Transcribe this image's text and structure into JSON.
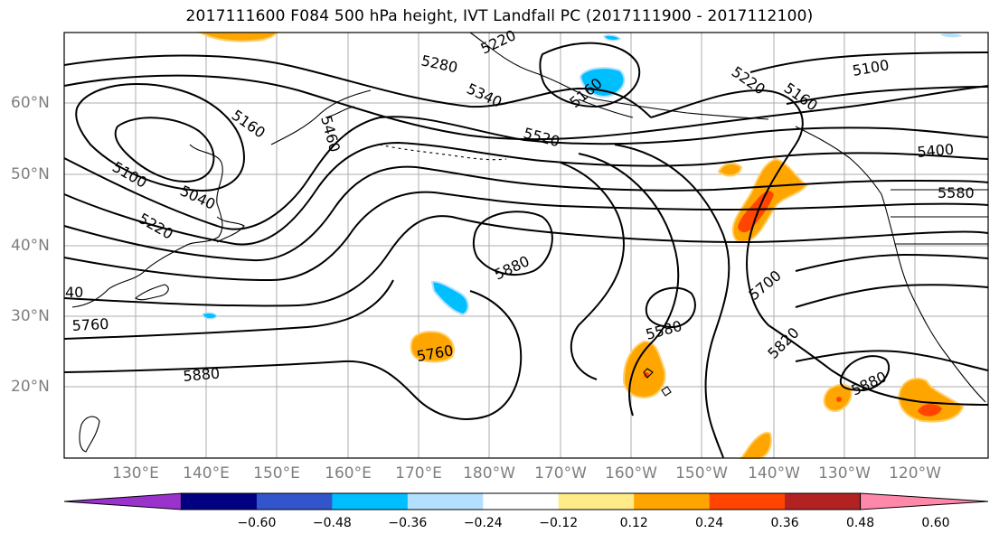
{
  "title": "2017111600 F084 500 hPa height, IVT Landfall PC (2017111900 - 2017112100)",
  "lat_labels": [
    {
      "text": "60°N"
    },
    {
      "text": "50°N"
    },
    {
      "text": "40°N"
    },
    {
      "text": "30°N"
    },
    {
      "text": "20°N"
    }
  ],
  "lon_labels": [
    {
      "text": "130°E"
    },
    {
      "text": "140°E"
    },
    {
      "text": "150°E"
    },
    {
      "text": "160°E"
    },
    {
      "text": "170°E"
    },
    {
      "text": "180°W"
    },
    {
      "text": "170°W"
    },
    {
      "text": "160°W"
    },
    {
      "text": "150°W"
    },
    {
      "text": "140°W"
    },
    {
      "text": "130°W"
    },
    {
      "text": "120°W"
    }
  ],
  "contour_labels": [
    "5220",
    "5280",
    "5340",
    "5160",
    "5460",
    "5100",
    "5040",
    "5220",
    "5520",
    "5880",
    "5760",
    "5880",
    "5760",
    "5220",
    "5160",
    "5100",
    "5400",
    "5580",
    "5700",
    "5580",
    "5820",
    "5880",
    "40",
    "5160"
  ],
  "colorbar": {
    "colors": [
      "#9933cc",
      "#000080",
      "#3355cc",
      "#00bfff",
      "#b3e0ff",
      "#ffffff",
      "#ffeb88",
      "#ffa500",
      "#ff4500",
      "#b22222",
      "#ff88aa"
    ],
    "ticks": [
      "−0.60",
      "−0.48",
      "−0.36",
      "−0.24",
      "−0.12",
      "0.12",
      "0.24",
      "0.36",
      "0.48",
      "0.60"
    ]
  }
}
